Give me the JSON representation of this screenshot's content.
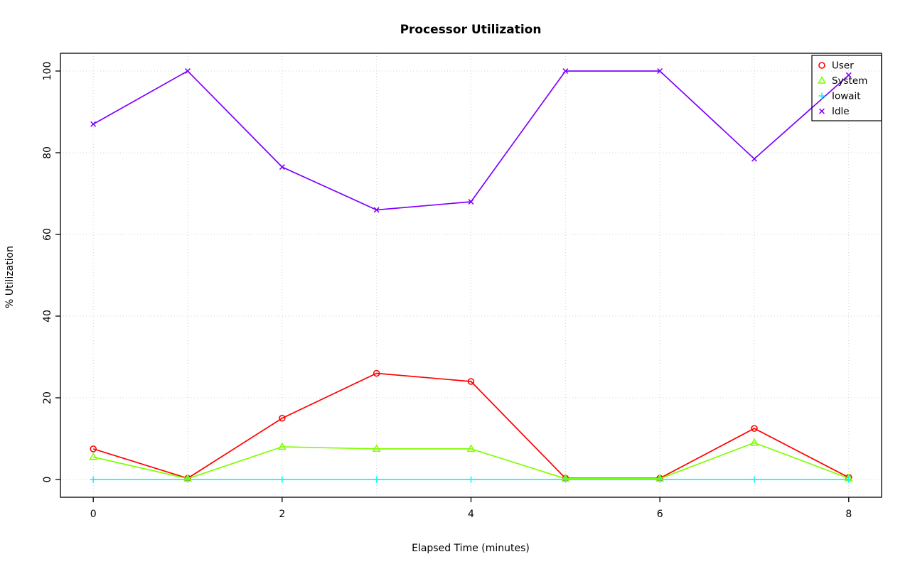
{
  "chart_data": {
    "type": "line",
    "title": "Processor Utilization",
    "xlabel": "Elapsed Time (minutes)",
    "ylabel": "% Utilization",
    "x": [
      0,
      1,
      2,
      3,
      4,
      5,
      6,
      7,
      8
    ],
    "xlim": [
      0,
      8
    ],
    "ylim": [
      0,
      100
    ],
    "x_ticks": [
      0,
      2,
      4,
      6,
      8
    ],
    "y_ticks": [
      0,
      20,
      40,
      60,
      80,
      100
    ],
    "x_grid": [
      0,
      1,
      2,
      3,
      4,
      5,
      6,
      7,
      8
    ],
    "y_grid": [
      0,
      20,
      40,
      60,
      80,
      100
    ],
    "grid": true,
    "grid_color": "#d3d3d3",
    "legend_position": "top-right",
    "series": [
      {
        "name": "User",
        "color": "#FF0000",
        "marker": "circle",
        "values": [
          7.5,
          0.3,
          15,
          26,
          24,
          0.3,
          0.3,
          12.5,
          0.5
        ]
      },
      {
        "name": "System",
        "color": "#80FF00",
        "marker": "triangle",
        "values": [
          5.5,
          0.2,
          8,
          7.5,
          7.5,
          0.2,
          0.2,
          9,
          0.3
        ]
      },
      {
        "name": "Iowait",
        "color": "#00FFFF",
        "marker": "plus",
        "values": [
          0,
          0,
          0,
          0,
          0,
          0,
          0,
          0,
          0
        ]
      },
      {
        "name": "Idle",
        "color": "#8000FF",
        "marker": "x",
        "values": [
          87,
          100,
          76.5,
          66,
          68,
          100,
          100,
          78.5,
          99
        ]
      }
    ]
  }
}
